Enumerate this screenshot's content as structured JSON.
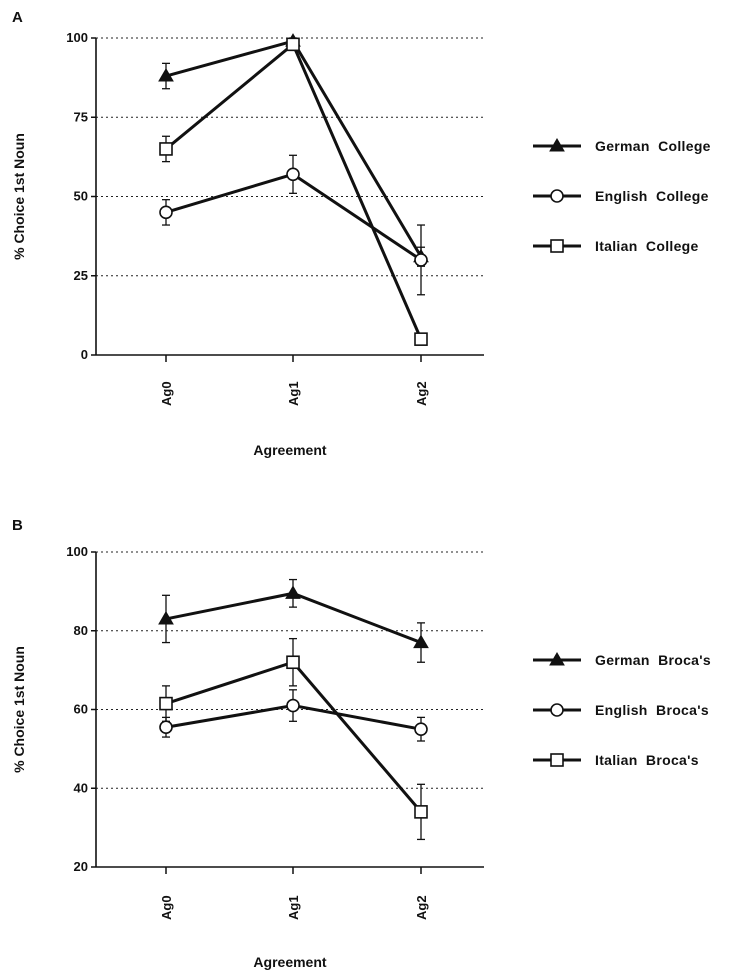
{
  "chart_data": [
    {
      "panel": "A",
      "type": "line",
      "categories": [
        "Ag0",
        "Ag1",
        "Ag2"
      ],
      "xlabel": "Agreement",
      "ylabel": "% Choice 1st Noun",
      "ylim": [
        0,
        100
      ],
      "yticks": [
        "0",
        "25",
        "50",
        "75",
        "100"
      ],
      "grid": "horizontal-dotted",
      "legend_position": "right",
      "series": [
        {
          "name": "German  College",
          "marker": "filled-triangle",
          "values": [
            88,
            99,
            31
          ],
          "error": [
            4,
            1,
            3
          ]
        },
        {
          "name": "English  College",
          "marker": "open-circle",
          "values": [
            45,
            57,
            30
          ],
          "error": [
            4,
            6,
            11
          ]
        },
        {
          "name": "Italian  College",
          "marker": "open-square",
          "values": [
            65,
            98,
            5
          ],
          "error": [
            4,
            1,
            0
          ]
        }
      ]
    },
    {
      "panel": "B",
      "type": "line",
      "categories": [
        "Ag0",
        "Ag1",
        "Ag2"
      ],
      "xlabel": "Agreement",
      "ylabel": "% Choice 1st Noun",
      "ylim": [
        20,
        100
      ],
      "yticks": [
        "20",
        "40",
        "60",
        "80",
        "100"
      ],
      "grid": "horizontal-dotted",
      "legend_position": "right",
      "series": [
        {
          "name": "German  Broca's",
          "marker": "filled-triangle",
          "values": [
            83,
            89.5,
            77
          ],
          "error": [
            6,
            3.5,
            5
          ]
        },
        {
          "name": "English  Broca's",
          "marker": "open-circle",
          "values": [
            55.5,
            61,
            55
          ],
          "error": [
            2.5,
            4,
            3
          ]
        },
        {
          "name": "Italian  Broca's",
          "marker": "open-square",
          "values": [
            61.5,
            72,
            34
          ],
          "error": [
            4.5,
            6,
            7
          ]
        }
      ]
    }
  ]
}
